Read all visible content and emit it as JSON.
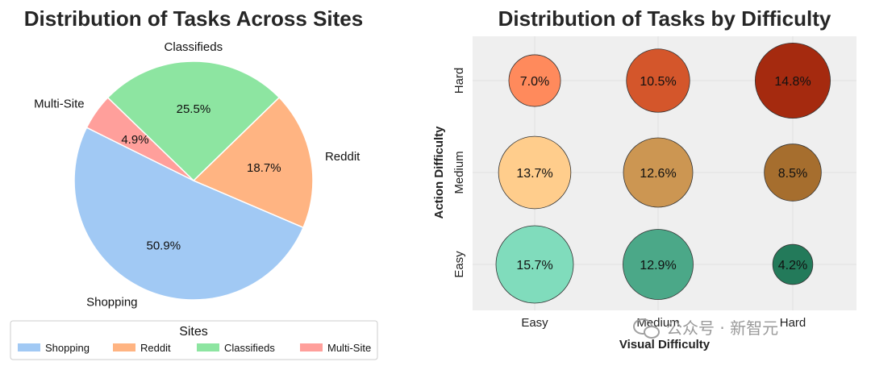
{
  "chart_data": [
    {
      "type": "pie",
      "title": "Distribution of Tasks Across Sites",
      "categories": [
        "Shopping",
        "Reddit",
        "Classifieds",
        "Multi-Site"
      ],
      "values": [
        50.9,
        18.7,
        25.5,
        4.9
      ],
      "data_labels": [
        "50.9%",
        "18.7%",
        "25.5%",
        "4.9%"
      ],
      "colors": [
        "#a1c9f4",
        "#ffb482",
        "#8de5a1",
        "#ff9f9b"
      ],
      "legend": {
        "title": "Sites",
        "entries": [
          "Shopping",
          "Reddit",
          "Classifieds",
          "Multi-Site"
        ],
        "placement": "bottom"
      }
    },
    {
      "type": "scatter",
      "title": "Distribution of Tasks by Difficulty",
      "xlabel": "Visual Difficulty",
      "ylabel": "Action Difficulty",
      "x_categories": [
        "Easy",
        "Medium",
        "Hard"
      ],
      "y_categories": [
        "Easy",
        "Medium",
        "Hard"
      ],
      "grid": true,
      "points": [
        {
          "x": "Easy",
          "y": "Hard",
          "value": 7.0,
          "label": "7.0%",
          "color": "#ff8a5c"
        },
        {
          "x": "Medium",
          "y": "Hard",
          "value": 10.5,
          "label": "10.5%",
          "color": "#d4562b"
        },
        {
          "x": "Hard",
          "y": "Hard",
          "value": 14.8,
          "label": "14.8%",
          "color": "#a52a0f"
        },
        {
          "x": "Easy",
          "y": "Medium",
          "value": 13.7,
          "label": "13.7%",
          "color": "#ffcd8c"
        },
        {
          "x": "Medium",
          "y": "Medium",
          "value": 12.6,
          "label": "12.6%",
          "color": "#cc9652"
        },
        {
          "x": "Hard",
          "y": "Medium",
          "value": 8.5,
          "label": "8.5%",
          "color": "#a66e2e"
        },
        {
          "x": "Easy",
          "y": "Easy",
          "value": 15.7,
          "label": "15.7%",
          "color": "#80dcbc"
        },
        {
          "x": "Medium",
          "y": "Easy",
          "value": 12.9,
          "label": "12.9%",
          "color": "#4ba888"
        },
        {
          "x": "Hard",
          "y": "Easy",
          "value": 4.2,
          "label": "4.2%",
          "color": "#237a5a"
        }
      ]
    }
  ],
  "watermark": {
    "text": "公众号 · 新智元",
    "icon": "wechat-icon"
  }
}
